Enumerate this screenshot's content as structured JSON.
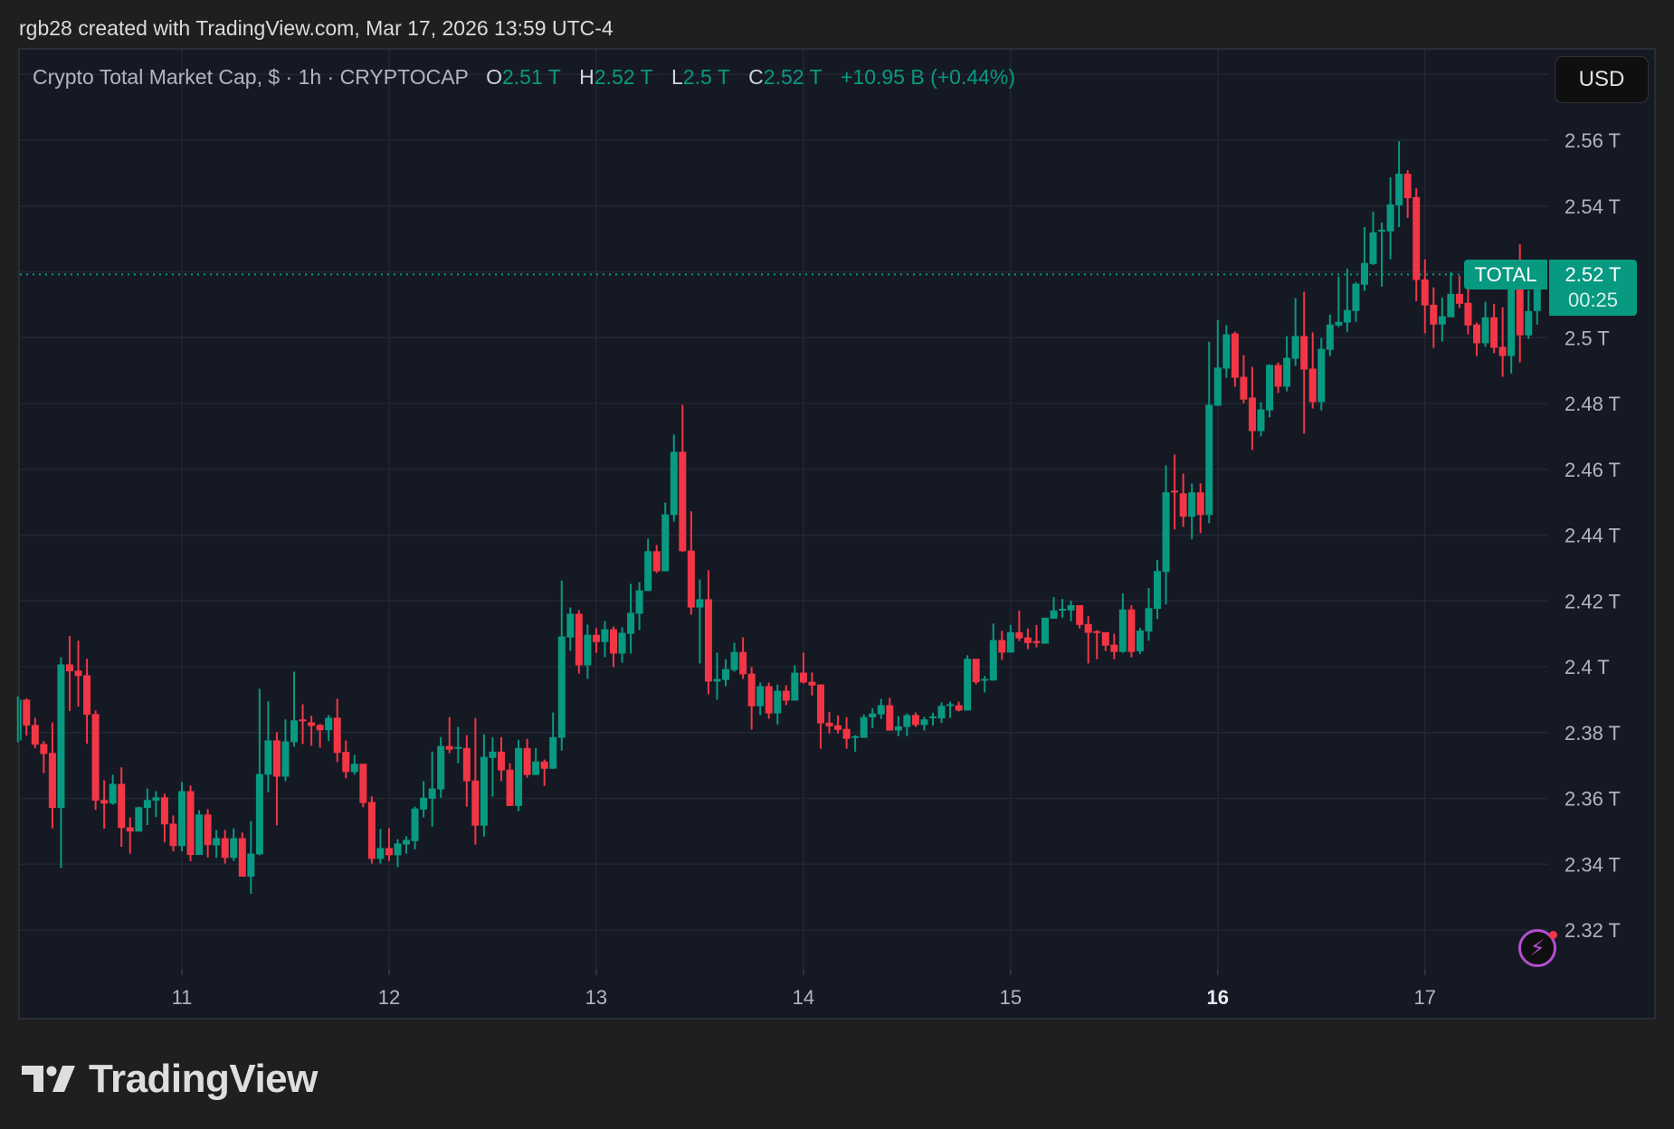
{
  "credit": "rgb28 created with TradingView.com, Mar 17, 2026 13:59 UTC-4",
  "legend": {
    "title": "Crypto Total Market Cap, $ · 1h · CRYPTOCAP",
    "open_key": "O",
    "open": "2.51 T",
    "high_key": "H",
    "high": "2.52 T",
    "low_key": "L",
    "low": "2.5 T",
    "close_key": "C",
    "close": "2.52 T",
    "change": "+10.95 B (+0.44%)"
  },
  "currency_button": "USD",
  "symbol_label": "TOTAL",
  "last_price_label": "2.52 T",
  "countdown": "00:25",
  "brand": "TradingView",
  "icons": {
    "alerts": "lightning-icon",
    "logo": "tradingview-logo"
  },
  "colors": {
    "up": "#089981",
    "down": "#f23645",
    "background": "#151924",
    "grid": "#222632",
    "axis_text": "#b2b5be"
  },
  "chart_data": {
    "type": "candlestick",
    "interval": "1h",
    "x_start": "2026-03-10T05:00",
    "ylim": [
      2.3,
      2.58
    ],
    "unit": "T",
    "grid": true,
    "last_price": 2.5192,
    "y_ticks": [
      {
        "value": 2.56,
        "label": "2.56 T"
      },
      {
        "value": 2.54,
        "label": "2.54 T"
      },
      {
        "value": 2.5,
        "label": "2.5 T"
      },
      {
        "value": 2.48,
        "label": "2.48 T"
      },
      {
        "value": 2.46,
        "label": "2.46 T"
      },
      {
        "value": 2.44,
        "label": "2.44 T"
      },
      {
        "value": 2.42,
        "label": "2.42 T"
      },
      {
        "value": 2.4,
        "label": "2.4 T"
      },
      {
        "value": 2.38,
        "label": "2.38 T"
      },
      {
        "value": 2.36,
        "label": "2.36 T"
      },
      {
        "value": 2.34,
        "label": "2.34 T"
      },
      {
        "value": 2.32,
        "label": "2.32 T"
      }
    ],
    "x_ticks": [
      {
        "date": "2026-03-11T00:00",
        "label": "11",
        "bold": false
      },
      {
        "date": "2026-03-12T00:00",
        "label": "12",
        "bold": false
      },
      {
        "date": "2026-03-13T00:00",
        "label": "13",
        "bold": false
      },
      {
        "date": "2026-03-14T00:00",
        "label": "14",
        "bold": false
      },
      {
        "date": "2026-03-15T00:00",
        "label": "15",
        "bold": false
      },
      {
        "date": "2026-03-16T00:00",
        "label": "16",
        "bold": true
      },
      {
        "date": "2026-03-17T00:00",
        "label": "17",
        "bold": false
      }
    ],
    "ohlc_fields": [
      "open",
      "high",
      "low",
      "close"
    ],
    "candles": [
      [
        2.3776,
        2.391,
        2.377,
        2.39
      ],
      [
        2.39,
        2.3904,
        2.3791,
        2.3821
      ],
      [
        2.3823,
        2.3845,
        2.3752,
        2.3763
      ],
      [
        2.3765,
        2.3774,
        2.3677,
        2.3735
      ],
      [
        2.3738,
        2.3831,
        2.3509,
        2.3571
      ],
      [
        2.3571,
        2.4029,
        2.3388,
        2.4007
      ],
      [
        2.4007,
        2.4093,
        2.3865,
        2.3986
      ],
      [
        2.3988,
        2.4079,
        2.3879,
        2.3972
      ],
      [
        2.3974,
        2.4024,
        2.3766,
        2.3854
      ],
      [
        2.3856,
        2.3867,
        2.3565,
        2.3593
      ],
      [
        2.3595,
        2.3655,
        2.3508,
        2.3584
      ],
      [
        2.3584,
        2.3672,
        2.3581,
        2.3644
      ],
      [
        2.3644,
        2.3694,
        2.3453,
        2.351
      ],
      [
        2.3512,
        2.3542,
        2.3432,
        2.3499
      ],
      [
        2.3499,
        2.3575,
        2.3499,
        2.3573
      ],
      [
        2.3571,
        2.363,
        2.3519,
        2.3595
      ],
      [
        2.3593,
        2.3622,
        2.3543,
        2.3603
      ],
      [
        2.3603,
        2.3614,
        2.3466,
        2.3521
      ],
      [
        2.3523,
        2.3548,
        2.3439,
        2.3455
      ],
      [
        2.3455,
        2.365,
        2.3439,
        2.3622
      ],
      [
        2.3622,
        2.3639,
        2.3409,
        2.3428
      ],
      [
        2.3428,
        2.3564,
        2.3428,
        2.3551
      ],
      [
        2.3551,
        2.3567,
        2.342,
        2.3458
      ],
      [
        2.3457,
        2.3504,
        2.3419,
        2.3479
      ],
      [
        2.3479,
        2.3504,
        2.3402,
        2.3419
      ],
      [
        2.3419,
        2.3509,
        2.341,
        2.3479
      ],
      [
        2.3479,
        2.3496,
        2.3362,
        2.3362
      ],
      [
        2.3362,
        2.3531,
        2.331,
        2.3432
      ],
      [
        2.343,
        2.3933,
        2.3427,
        2.3674
      ],
      [
        2.3672,
        2.3895,
        2.3619,
        2.3776
      ],
      [
        2.3776,
        2.3801,
        2.3518,
        2.3666
      ],
      [
        2.3666,
        2.384,
        2.3652,
        2.3773
      ],
      [
        2.3771,
        2.3985,
        2.3757,
        2.3837
      ],
      [
        2.384,
        2.3886,
        2.3765,
        2.3834
      ],
      [
        2.3831,
        2.3851,
        2.376,
        2.382
      ],
      [
        2.3823,
        2.3826,
        2.3754,
        2.3807
      ],
      [
        2.3807,
        2.3853,
        2.3774,
        2.3845
      ],
      [
        2.3845,
        2.3903,
        2.371,
        2.3738
      ],
      [
        2.3741,
        2.3776,
        2.3661,
        2.368
      ],
      [
        2.368,
        2.3732,
        2.3672,
        2.3705
      ],
      [
        2.3705,
        2.3705,
        2.3573,
        2.3586
      ],
      [
        2.3589,
        2.3606,
        2.3402,
        2.3416
      ],
      [
        2.3416,
        2.3507,
        2.3402,
        2.3449
      ],
      [
        2.3449,
        2.3509,
        2.341,
        2.3427
      ],
      [
        2.3427,
        2.3476,
        2.3391,
        2.3463
      ],
      [
        2.346,
        2.3485,
        2.3432,
        2.3474
      ],
      [
        2.347,
        2.3575,
        2.3445,
        2.3569
      ],
      [
        2.3566,
        2.3652,
        2.3542,
        2.3602
      ],
      [
        2.3599,
        2.3742,
        2.3514,
        2.363
      ],
      [
        2.3627,
        2.3786,
        2.3602,
        2.3759
      ],
      [
        2.3759,
        2.3847,
        2.3737,
        2.3748
      ],
      [
        2.3752,
        2.3817,
        2.3707,
        2.3756
      ],
      [
        2.3753,
        2.3792,
        2.3575,
        2.3652
      ],
      [
        2.3654,
        2.3844,
        2.3459,
        2.3517
      ],
      [
        2.3517,
        2.3795,
        2.3484,
        2.3726
      ],
      [
        2.3723,
        2.3786,
        2.3605,
        2.3742
      ],
      [
        2.3742,
        2.3786,
        2.3652,
        2.3685
      ],
      [
        2.3687,
        2.3707,
        2.3577,
        2.3577
      ],
      [
        2.3577,
        2.3778,
        2.3561,
        2.3753
      ],
      [
        2.3753,
        2.3781,
        2.3663,
        2.3671
      ],
      [
        2.3671,
        2.3753,
        2.3671,
        2.3712
      ],
      [
        2.3712,
        2.3718,
        2.3638,
        2.369
      ],
      [
        2.369,
        2.3861,
        2.369,
        2.3786
      ],
      [
        2.3784,
        2.4262,
        2.3745,
        2.4092
      ],
      [
        2.4089,
        2.418,
        2.4048,
        2.4161
      ],
      [
        2.4161,
        2.4172,
        2.3979,
        2.4004
      ],
      [
        2.4004,
        2.4128,
        2.3963,
        2.4097
      ],
      [
        2.4097,
        2.4117,
        2.4042,
        2.4075
      ],
      [
        2.4075,
        2.4139,
        2.4029,
        2.4114
      ],
      [
        2.4114,
        2.4122,
        2.3999,
        2.404
      ],
      [
        2.404,
        2.412,
        2.4012,
        2.4103
      ],
      [
        2.41,
        2.4252,
        2.404,
        2.4164
      ],
      [
        2.4161,
        2.4257,
        2.4111,
        2.4232
      ],
      [
        2.423,
        2.4389,
        2.423,
        2.4351
      ],
      [
        2.4351,
        2.437,
        2.4285,
        2.429
      ],
      [
        2.429,
        2.4499,
        2.429,
        2.4463
      ],
      [
        2.4461,
        2.4706,
        2.4441,
        2.4653
      ],
      [
        2.4653,
        2.4796,
        2.4348,
        2.4351
      ],
      [
        2.4353,
        2.4472,
        2.4158,
        2.418
      ],
      [
        2.418,
        2.4265,
        2.401,
        2.4205
      ],
      [
        2.4205,
        2.4293,
        2.3916,
        2.3955
      ],
      [
        2.3955,
        2.4043,
        2.39,
        2.3963
      ],
      [
        2.396,
        2.4023,
        2.3941,
        2.3993
      ],
      [
        2.399,
        2.4073,
        2.3985,
        2.4045
      ],
      [
        2.4045,
        2.4089,
        2.3963,
        2.3977
      ],
      [
        2.3979,
        2.3999,
        2.3809,
        2.388
      ],
      [
        2.388,
        2.3952,
        2.3853,
        2.3941
      ],
      [
        2.3941,
        2.3952,
        2.3842,
        2.3858
      ],
      [
        2.3858,
        2.3946,
        2.3825,
        2.3927
      ],
      [
        2.3927,
        2.3944,
        2.3883,
        2.3897
      ],
      [
        2.3897,
        2.4004,
        2.3897,
        2.3982
      ],
      [
        2.3982,
        2.4043,
        2.3949,
        2.3952
      ],
      [
        2.3954,
        2.3982,
        2.3913,
        2.3943
      ],
      [
        2.3946,
        2.3946,
        2.3751,
        2.3828
      ],
      [
        2.383,
        2.3863,
        2.3797,
        2.3819
      ],
      [
        2.3822,
        2.3852,
        2.3797,
        2.3808
      ],
      [
        2.3811,
        2.3847,
        2.3751,
        2.3781
      ],
      [
        2.3785,
        2.3792,
        2.3742,
        2.3789
      ],
      [
        2.3784,
        2.3855,
        2.3784,
        2.3847
      ],
      [
        2.3846,
        2.3874,
        2.3814,
        2.3858
      ],
      [
        2.3855,
        2.3902,
        2.3841,
        2.3883
      ],
      [
        2.3883,
        2.3905,
        2.3806,
        2.3806
      ],
      [
        2.3806,
        2.385,
        2.3789,
        2.3819
      ],
      [
        2.3817,
        2.3858,
        2.3789,
        2.3853
      ],
      [
        2.3853,
        2.3861,
        2.3817,
        2.3823
      ],
      [
        2.3823,
        2.3848,
        2.3806,
        2.384
      ],
      [
        2.3845,
        2.386,
        2.3821,
        2.3849
      ],
      [
        2.3843,
        2.3892,
        2.3829,
        2.3881
      ],
      [
        2.3883,
        2.3894,
        2.3845,
        2.3886
      ],
      [
        2.3883,
        2.3894,
        2.3864,
        2.3867
      ],
      [
        2.3867,
        2.4035,
        2.3867,
        2.4024
      ],
      [
        2.4024,
        2.4024,
        2.3947,
        2.3953
      ],
      [
        2.3959,
        2.3972,
        2.3922,
        2.3963
      ],
      [
        2.3958,
        2.4131,
        2.3958,
        2.4081
      ],
      [
        2.4081,
        2.4109,
        2.4021,
        2.4043
      ],
      [
        2.4043,
        2.4127,
        2.4043,
        2.4105
      ],
      [
        2.4105,
        2.4171,
        2.4078,
        2.4086
      ],
      [
        2.4089,
        2.4116,
        2.4053,
        2.4072
      ],
      [
        2.4078,
        2.4127,
        2.4059,
        2.4072
      ],
      [
        2.407,
        2.4149,
        2.407,
        2.4149
      ],
      [
        2.4146,
        2.4212,
        2.4146,
        2.4171
      ],
      [
        2.4172,
        2.4206,
        2.4149,
        2.4176
      ],
      [
        2.4171,
        2.4201,
        2.4138,
        2.4187
      ],
      [
        2.4187,
        2.4187,
        2.4116,
        2.4127
      ],
      [
        2.413,
        2.4154,
        2.401,
        2.4103
      ],
      [
        2.4108,
        2.4111,
        2.4023,
        2.4103
      ],
      [
        2.4105,
        2.4105,
        2.4048,
        2.4064
      ],
      [
        2.4067,
        2.41,
        2.4023,
        2.4045
      ],
      [
        2.4045,
        2.4223,
        2.4042,
        2.4174
      ],
      [
        2.4174,
        2.4187,
        2.4029,
        2.4045
      ],
      [
        2.4047,
        2.4118,
        2.4039,
        2.411
      ],
      [
        2.4107,
        2.4239,
        2.4079,
        2.4178
      ],
      [
        2.4176,
        2.4324,
        2.4145,
        2.4291
      ],
      [
        2.4288,
        2.4612,
        2.4189,
        2.453
      ],
      [
        2.4535,
        2.4645,
        2.4417,
        2.453
      ],
      [
        2.4527,
        2.4587,
        2.4425,
        2.4456
      ],
      [
        2.4456,
        2.4557,
        2.4387,
        2.453
      ],
      [
        2.453,
        2.4557,
        2.4406,
        2.4461
      ],
      [
        2.4461,
        2.4988,
        2.4436,
        2.4796
      ],
      [
        2.4793,
        2.5054,
        2.4793,
        2.4909
      ],
      [
        2.4906,
        2.5038,
        2.4878,
        2.501
      ],
      [
        2.5013,
        2.5018,
        2.4851,
        2.4878
      ],
      [
        2.4881,
        2.4947,
        2.4801,
        2.4812
      ],
      [
        2.4818,
        2.4911,
        2.4659,
        2.4716
      ],
      [
        2.4716,
        2.4804,
        2.47,
        2.4782
      ],
      [
        2.4779,
        2.4919,
        2.4758,
        2.4917
      ],
      [
        2.4917,
        2.4925,
        2.4832,
        2.4851
      ],
      [
        2.4851,
        2.5005,
        2.4837,
        2.4939
      ],
      [
        2.4936,
        2.512,
        2.4914,
        2.5005
      ],
      [
        2.5005,
        2.514,
        2.4708,
        2.4903
      ],
      [
        2.4906,
        2.5016,
        2.4785,
        2.4804
      ],
      [
        2.4804,
        2.4999,
        2.4779,
        2.4966
      ],
      [
        2.4963,
        2.507,
        2.4944,
        2.504
      ],
      [
        2.5037,
        2.5186,
        2.5032,
        2.5048
      ],
      [
        2.5046,
        2.521,
        2.5018,
        2.5084
      ],
      [
        2.5081,
        2.5169,
        2.5048,
        2.5164
      ],
      [
        2.5161,
        2.5336,
        2.5142,
        2.5227
      ],
      [
        2.5224,
        2.5383,
        2.5221,
        2.532
      ],
      [
        2.5324,
        2.535,
        2.5155,
        2.5328
      ],
      [
        2.5323,
        2.5487,
        2.5238,
        2.5405
      ],
      [
        2.5402,
        2.5597,
        2.5336,
        2.5498
      ],
      [
        2.5498,
        2.5509,
        2.5364,
        2.5424
      ],
      [
        2.5427,
        2.5454,
        2.5111,
        2.5175
      ],
      [
        2.5177,
        2.5238,
        2.5013,
        2.5098
      ],
      [
        2.51,
        2.5153,
        2.4969,
        2.504
      ],
      [
        2.504,
        2.5122,
        2.4988,
        2.5065
      ],
      [
        2.5062,
        2.5199,
        2.5062,
        2.5133
      ],
      [
        2.5133,
        2.5188,
        2.509,
        2.5103
      ],
      [
        2.5106,
        2.5147,
        2.501,
        2.5037
      ],
      [
        2.504,
        2.5046,
        2.4944,
        2.4983
      ],
      [
        2.4983,
        2.5109,
        2.4972,
        2.5062
      ],
      [
        2.5062,
        2.5103,
        2.4953,
        2.4969
      ],
      [
        2.4972,
        2.5092,
        2.4881,
        2.4944
      ],
      [
        2.4944,
        2.517,
        2.4891,
        2.515
      ],
      [
        2.515,
        2.5284,
        2.4925,
        2.5007
      ],
      [
        2.5007,
        2.5144,
        2.4996,
        2.5081
      ],
      [
        2.5081,
        2.52,
        2.504,
        2.5192
      ]
    ]
  }
}
